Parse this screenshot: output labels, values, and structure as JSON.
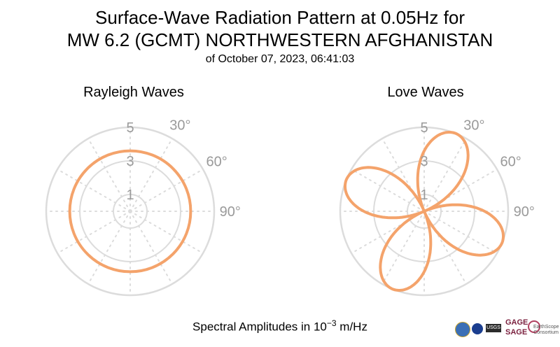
{
  "header": {
    "title_line1": "Surface-Wave Radiation Pattern at 0.05Hz for",
    "title_line2": "MW 6.2 (GCMT) NORTHWESTERN AFGHANISTAN",
    "subtitle": "of October 07, 2023, 06:41:03"
  },
  "footer": {
    "label_prefix": "Spectral Amplitudes in ",
    "label_base": "10",
    "label_exp": "−3",
    "label_unit": " m/Hz"
  },
  "logos": {
    "usgs": "USGS",
    "gage": "GAGE",
    "sage": "SAGE",
    "earthscope": "EarthScope Consortium"
  },
  "colors": {
    "pattern": "#f4a36b",
    "grid": "#dcdcdc",
    "tick_text": "#9a9a9a"
  },
  "chart_data": [
    {
      "type": "polar-line",
      "title": "Rayleigh Waves",
      "angle_zero": "north",
      "angle_direction": "clockwise",
      "angle_ticks": [
        "30°",
        "60°",
        "90°"
      ],
      "radial_ticks": [
        "1",
        "3",
        "5"
      ],
      "rlim": [
        0,
        5
      ],
      "grid": true,
      "series": [
        {
          "pattern": "circle",
          "radius": 3.6
        }
      ]
    },
    {
      "type": "polar-line",
      "title": "Love Waves",
      "angle_zero": "north",
      "angle_direction": "clockwise",
      "angle_ticks": [
        "30°",
        "60°",
        "90°"
      ],
      "radial_ticks": [
        "1",
        "3",
        "5"
      ],
      "rlim": [
        0,
        5
      ],
      "grid": true,
      "series": [
        {
          "pattern": "four-lobe",
          "max_amplitude": 5.0,
          "peak_azimuths_deg": [
            22,
            120,
            202,
            300
          ]
        }
      ]
    }
  ]
}
